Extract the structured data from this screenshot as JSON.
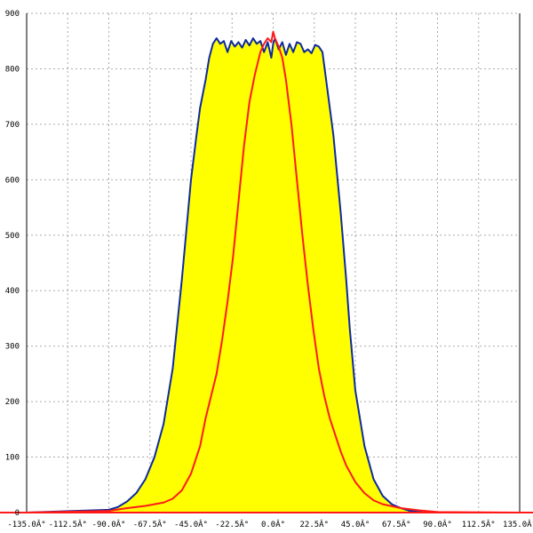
{
  "chart_data": {
    "type": "area",
    "title": "",
    "xlabel": "",
    "ylabel": "",
    "xlim": [
      -135,
      135
    ],
    "ylim": [
      0,
      900
    ],
    "grid": true,
    "x_ticks": [
      -135,
      -112.5,
      -90,
      -67.5,
      -45,
      -22.5,
      0,
      22.5,
      45,
      67.5,
      90,
      112.5,
      135
    ],
    "x_tick_labels": [
      "-135.0Â°",
      "-112.5Â°",
      "-90.0Â°",
      "-67.5Â°",
      "-45.0Â°",
      "-22.5Â°",
      "0.0Â°",
      "22.5Â°",
      "45.0Â°",
      "67.5Â°",
      "90.0Â°",
      "112.5Â°",
      "135.0Â°"
    ],
    "y_ticks": [
      0,
      100,
      200,
      300,
      400,
      500,
      600,
      700,
      800,
      900
    ],
    "y_tick_labels": [
      "0",
      "100",
      "200",
      "300",
      "400",
      "500",
      "600",
      "700",
      "800",
      "900"
    ],
    "series": [
      {
        "color": "#0d2a9c",
        "fill": "#ffff00",
        "x": [
          -135,
          -90,
          -85,
          -80,
          -75,
          -70,
          -65,
          -60,
          -55,
          -50,
          -45,
          -42,
          -40,
          -37,
          -35,
          -33,
          -31,
          -29,
          -27,
          -25,
          -23,
          -21,
          -19,
          -17,
          -15,
          -13,
          -11,
          -9,
          -7,
          -5,
          -3,
          -1,
          0,
          1,
          3,
          5,
          7,
          9,
          11,
          13,
          15,
          17,
          19,
          21,
          23,
          25,
          27,
          29,
          31,
          33,
          35,
          37,
          40,
          42,
          45,
          50,
          55,
          60,
          65,
          70,
          75,
          80,
          85,
          90,
          135
        ],
        "y": [
          0,
          5,
          10,
          20,
          35,
          60,
          100,
          160,
          260,
          420,
          600,
          680,
          730,
          780,
          820,
          845,
          855,
          845,
          850,
          830,
          850,
          840,
          848,
          838,
          852,
          842,
          855,
          845,
          850,
          830,
          848,
          820,
          845,
          855,
          835,
          848,
          825,
          845,
          830,
          848,
          845,
          830,
          835,
          828,
          843,
          840,
          830,
          780,
          730,
          680,
          610,
          540,
          420,
          330,
          220,
          120,
          60,
          30,
          15,
          8,
          3,
          1,
          0,
          0,
          0
        ]
      },
      {
        "color": "#ff1a1a",
        "fill": "",
        "x": [
          -135,
          -90,
          -80,
          -70,
          -60,
          -55,
          -50,
          -45,
          -40,
          -37,
          -34,
          -31,
          -28,
          -25,
          -22,
          -19,
          -16,
          -13,
          -10,
          -7,
          -5,
          -3,
          -1,
          0,
          1,
          3,
          5,
          7,
          10,
          13,
          16,
          19,
          22,
          25,
          28,
          31,
          34,
          37,
          40,
          45,
          50,
          55,
          60,
          70,
          80,
          90,
          135
        ],
        "y": [
          0,
          3,
          8,
          12,
          18,
          25,
          40,
          70,
          120,
          170,
          210,
          250,
          310,
          380,
          460,
          560,
          660,
          740,
          790,
          830,
          845,
          855,
          848,
          867,
          855,
          840,
          820,
          780,
          700,
          600,
          500,
          410,
          330,
          260,
          210,
          170,
          140,
          110,
          85,
          55,
          35,
          22,
          15,
          8,
          4,
          1,
          0
        ]
      }
    ]
  }
}
